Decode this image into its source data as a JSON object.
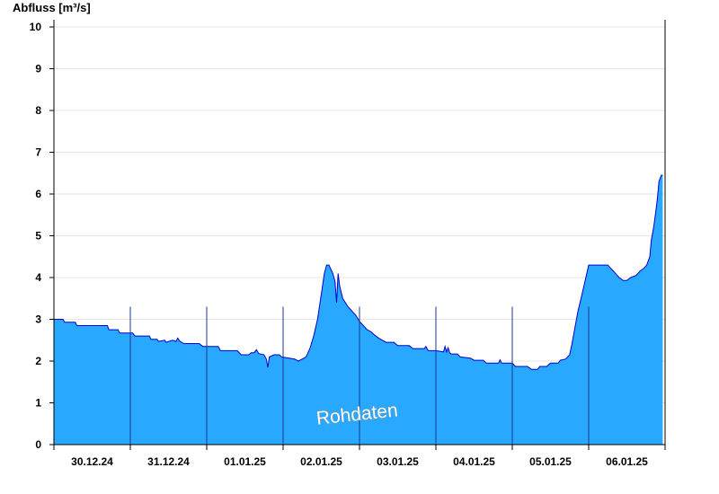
{
  "chart_data": {
    "type": "area",
    "ylabel": "Abfluss [m³/s]",
    "ylim": [
      0,
      10
    ],
    "yticks": [
      0,
      1,
      2,
      3,
      4,
      5,
      6,
      7,
      8,
      9,
      10
    ],
    "xlim": [
      0,
      8
    ],
    "day_labels": [
      "30.12.24",
      "31.12.24",
      "01.01.25",
      "02.01.25",
      "03.01.25",
      "04.01.25",
      "05.01.25",
      "06.01.25"
    ],
    "grid": "horizontal",
    "watermark": "Rohdaten",
    "colors": {
      "fill": "#29a8ff",
      "line": "#0000cc",
      "grid": "#e6e6e6",
      "axis": "#000000"
    },
    "series": [
      {
        "points": [
          [
            0.0,
            3.0
          ],
          [
            0.12,
            3.0
          ],
          [
            0.14,
            2.93
          ],
          [
            0.28,
            2.93
          ],
          [
            0.3,
            2.85
          ],
          [
            0.5,
            2.85
          ],
          [
            0.7,
            2.85
          ],
          [
            0.72,
            2.75
          ],
          [
            0.84,
            2.75
          ],
          [
            0.86,
            2.67
          ],
          [
            1.03,
            2.67
          ],
          [
            1.06,
            2.6
          ],
          [
            1.25,
            2.6
          ],
          [
            1.27,
            2.52
          ],
          [
            1.35,
            2.52
          ],
          [
            1.37,
            2.47
          ],
          [
            1.45,
            2.5
          ],
          [
            1.47,
            2.45
          ],
          [
            1.55,
            2.5
          ],
          [
            1.6,
            2.47
          ],
          [
            1.62,
            2.55
          ],
          [
            1.65,
            2.47
          ],
          [
            1.7,
            2.42
          ],
          [
            1.9,
            2.42
          ],
          [
            1.95,
            2.35
          ],
          [
            2.15,
            2.35
          ],
          [
            2.18,
            2.25
          ],
          [
            2.4,
            2.25
          ],
          [
            2.45,
            2.15
          ],
          [
            2.55,
            2.15
          ],
          [
            2.58,
            2.2
          ],
          [
            2.62,
            2.2
          ],
          [
            2.65,
            2.27
          ],
          [
            2.68,
            2.18
          ],
          [
            2.75,
            2.15
          ],
          [
            2.78,
            2.05
          ],
          [
            2.8,
            1.85
          ],
          [
            2.82,
            2.1
          ],
          [
            2.88,
            2.15
          ],
          [
            2.95,
            2.15
          ],
          [
            2.98,
            2.1
          ],
          [
            3.15,
            2.05
          ],
          [
            3.2,
            2.0
          ],
          [
            3.25,
            2.05
          ],
          [
            3.3,
            2.1
          ],
          [
            3.35,
            2.3
          ],
          [
            3.4,
            2.6
          ],
          [
            3.45,
            3.0
          ],
          [
            3.5,
            3.6
          ],
          [
            3.54,
            4.1
          ],
          [
            3.57,
            4.3
          ],
          [
            3.6,
            4.3
          ],
          [
            3.65,
            4.1
          ],
          [
            3.68,
            3.9
          ],
          [
            3.7,
            3.4
          ],
          [
            3.72,
            4.1
          ],
          [
            3.74,
            3.8
          ],
          [
            3.78,
            3.5
          ],
          [
            3.85,
            3.3
          ],
          [
            3.95,
            3.1
          ],
          [
            4.0,
            2.95
          ],
          [
            4.05,
            2.85
          ],
          [
            4.1,
            2.75
          ],
          [
            4.15,
            2.7
          ],
          [
            4.2,
            2.62
          ],
          [
            4.25,
            2.55
          ],
          [
            4.3,
            2.5
          ],
          [
            4.35,
            2.45
          ],
          [
            4.45,
            2.45
          ],
          [
            4.5,
            2.37
          ],
          [
            4.65,
            2.37
          ],
          [
            4.7,
            2.3
          ],
          [
            4.8,
            2.3
          ],
          [
            4.85,
            2.3
          ],
          [
            4.87,
            2.35
          ],
          [
            4.9,
            2.25
          ],
          [
            5.0,
            2.25
          ],
          [
            5.1,
            2.22
          ],
          [
            5.12,
            2.35
          ],
          [
            5.14,
            2.22
          ],
          [
            5.16,
            2.32
          ],
          [
            5.18,
            2.2
          ],
          [
            5.2,
            2.17
          ],
          [
            5.28,
            2.17
          ],
          [
            5.32,
            2.1
          ],
          [
            5.45,
            2.07
          ],
          [
            5.5,
            2.02
          ],
          [
            5.62,
            2.02
          ],
          [
            5.66,
            1.95
          ],
          [
            5.82,
            1.95
          ],
          [
            5.84,
            2.03
          ],
          [
            5.86,
            1.95
          ],
          [
            6.0,
            1.95
          ],
          [
            6.04,
            1.87
          ],
          [
            6.2,
            1.87
          ],
          [
            6.25,
            1.8
          ],
          [
            6.33,
            1.8
          ],
          [
            6.36,
            1.87
          ],
          [
            6.45,
            1.87
          ],
          [
            6.5,
            1.95
          ],
          [
            6.6,
            1.95
          ],
          [
            6.63,
            2.02
          ],
          [
            6.7,
            2.05
          ],
          [
            6.75,
            2.15
          ],
          [
            6.78,
            2.4
          ],
          [
            6.82,
            2.8
          ],
          [
            6.86,
            3.2
          ],
          [
            6.9,
            3.5
          ],
          [
            6.95,
            3.9
          ],
          [
            7.0,
            4.3
          ],
          [
            7.05,
            4.3
          ],
          [
            7.25,
            4.3
          ],
          [
            7.3,
            4.2
          ],
          [
            7.35,
            4.1
          ],
          [
            7.4,
            4.0
          ],
          [
            7.45,
            3.93
          ],
          [
            7.5,
            3.93
          ],
          [
            7.55,
            4.0
          ],
          [
            7.62,
            4.05
          ],
          [
            7.67,
            4.15
          ],
          [
            7.72,
            4.22
          ],
          [
            7.76,
            4.3
          ],
          [
            7.8,
            4.5
          ],
          [
            7.82,
            4.9
          ],
          [
            7.85,
            5.2
          ],
          [
            7.88,
            5.6
          ],
          [
            7.9,
            5.9
          ],
          [
            7.92,
            6.3
          ],
          [
            7.95,
            6.45
          ],
          [
            7.97,
            6.45
          ]
        ]
      }
    ]
  }
}
